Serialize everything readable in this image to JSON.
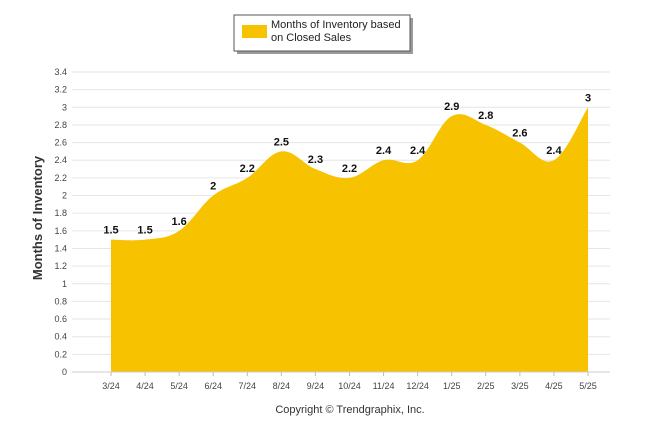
{
  "chart_data": {
    "type": "area",
    "categories": [
      "3/24",
      "4/24",
      "5/24",
      "6/24",
      "7/24",
      "8/24",
      "9/24",
      "10/24",
      "11/24",
      "12/24",
      "1/25",
      "2/25",
      "3/25",
      "4/25",
      "5/25"
    ],
    "series": [
      {
        "name": "Months of Inventory based on Closed Sales",
        "values": [
          1.5,
          1.5,
          1.6,
          2,
          2.2,
          2.5,
          2.3,
          2.2,
          2.4,
          2.4,
          2.9,
          2.8,
          2.6,
          2.4,
          3
        ],
        "labels": [
          "1.5",
          "1.5",
          "1.6",
          "2",
          "2.2",
          "2.5",
          "2.3",
          "2.2",
          "2.4",
          "2.4",
          "2.9",
          "2.8",
          "2.6",
          "2.4",
          "3"
        ],
        "color": "#f7c200"
      }
    ],
    "ylabel": "Months of Inventory",
    "ylim": [
      0,
      3.4
    ],
    "yticks": [
      "0",
      "0.2",
      "0.4",
      "0.6",
      "0.8",
      "1",
      "1.2",
      "1.4",
      "1.6",
      "1.8",
      "2",
      "2.2",
      "2.4",
      "2.6",
      "2.8",
      "3",
      "3.2",
      "3.4"
    ],
    "grid": true,
    "legend_position": "top-center"
  },
  "legend": {
    "line1": "Months of Inventory based",
    "line2": "on Closed Sales"
  },
  "footer": {
    "copyright": "Copyright © Trendgraphix, Inc."
  }
}
